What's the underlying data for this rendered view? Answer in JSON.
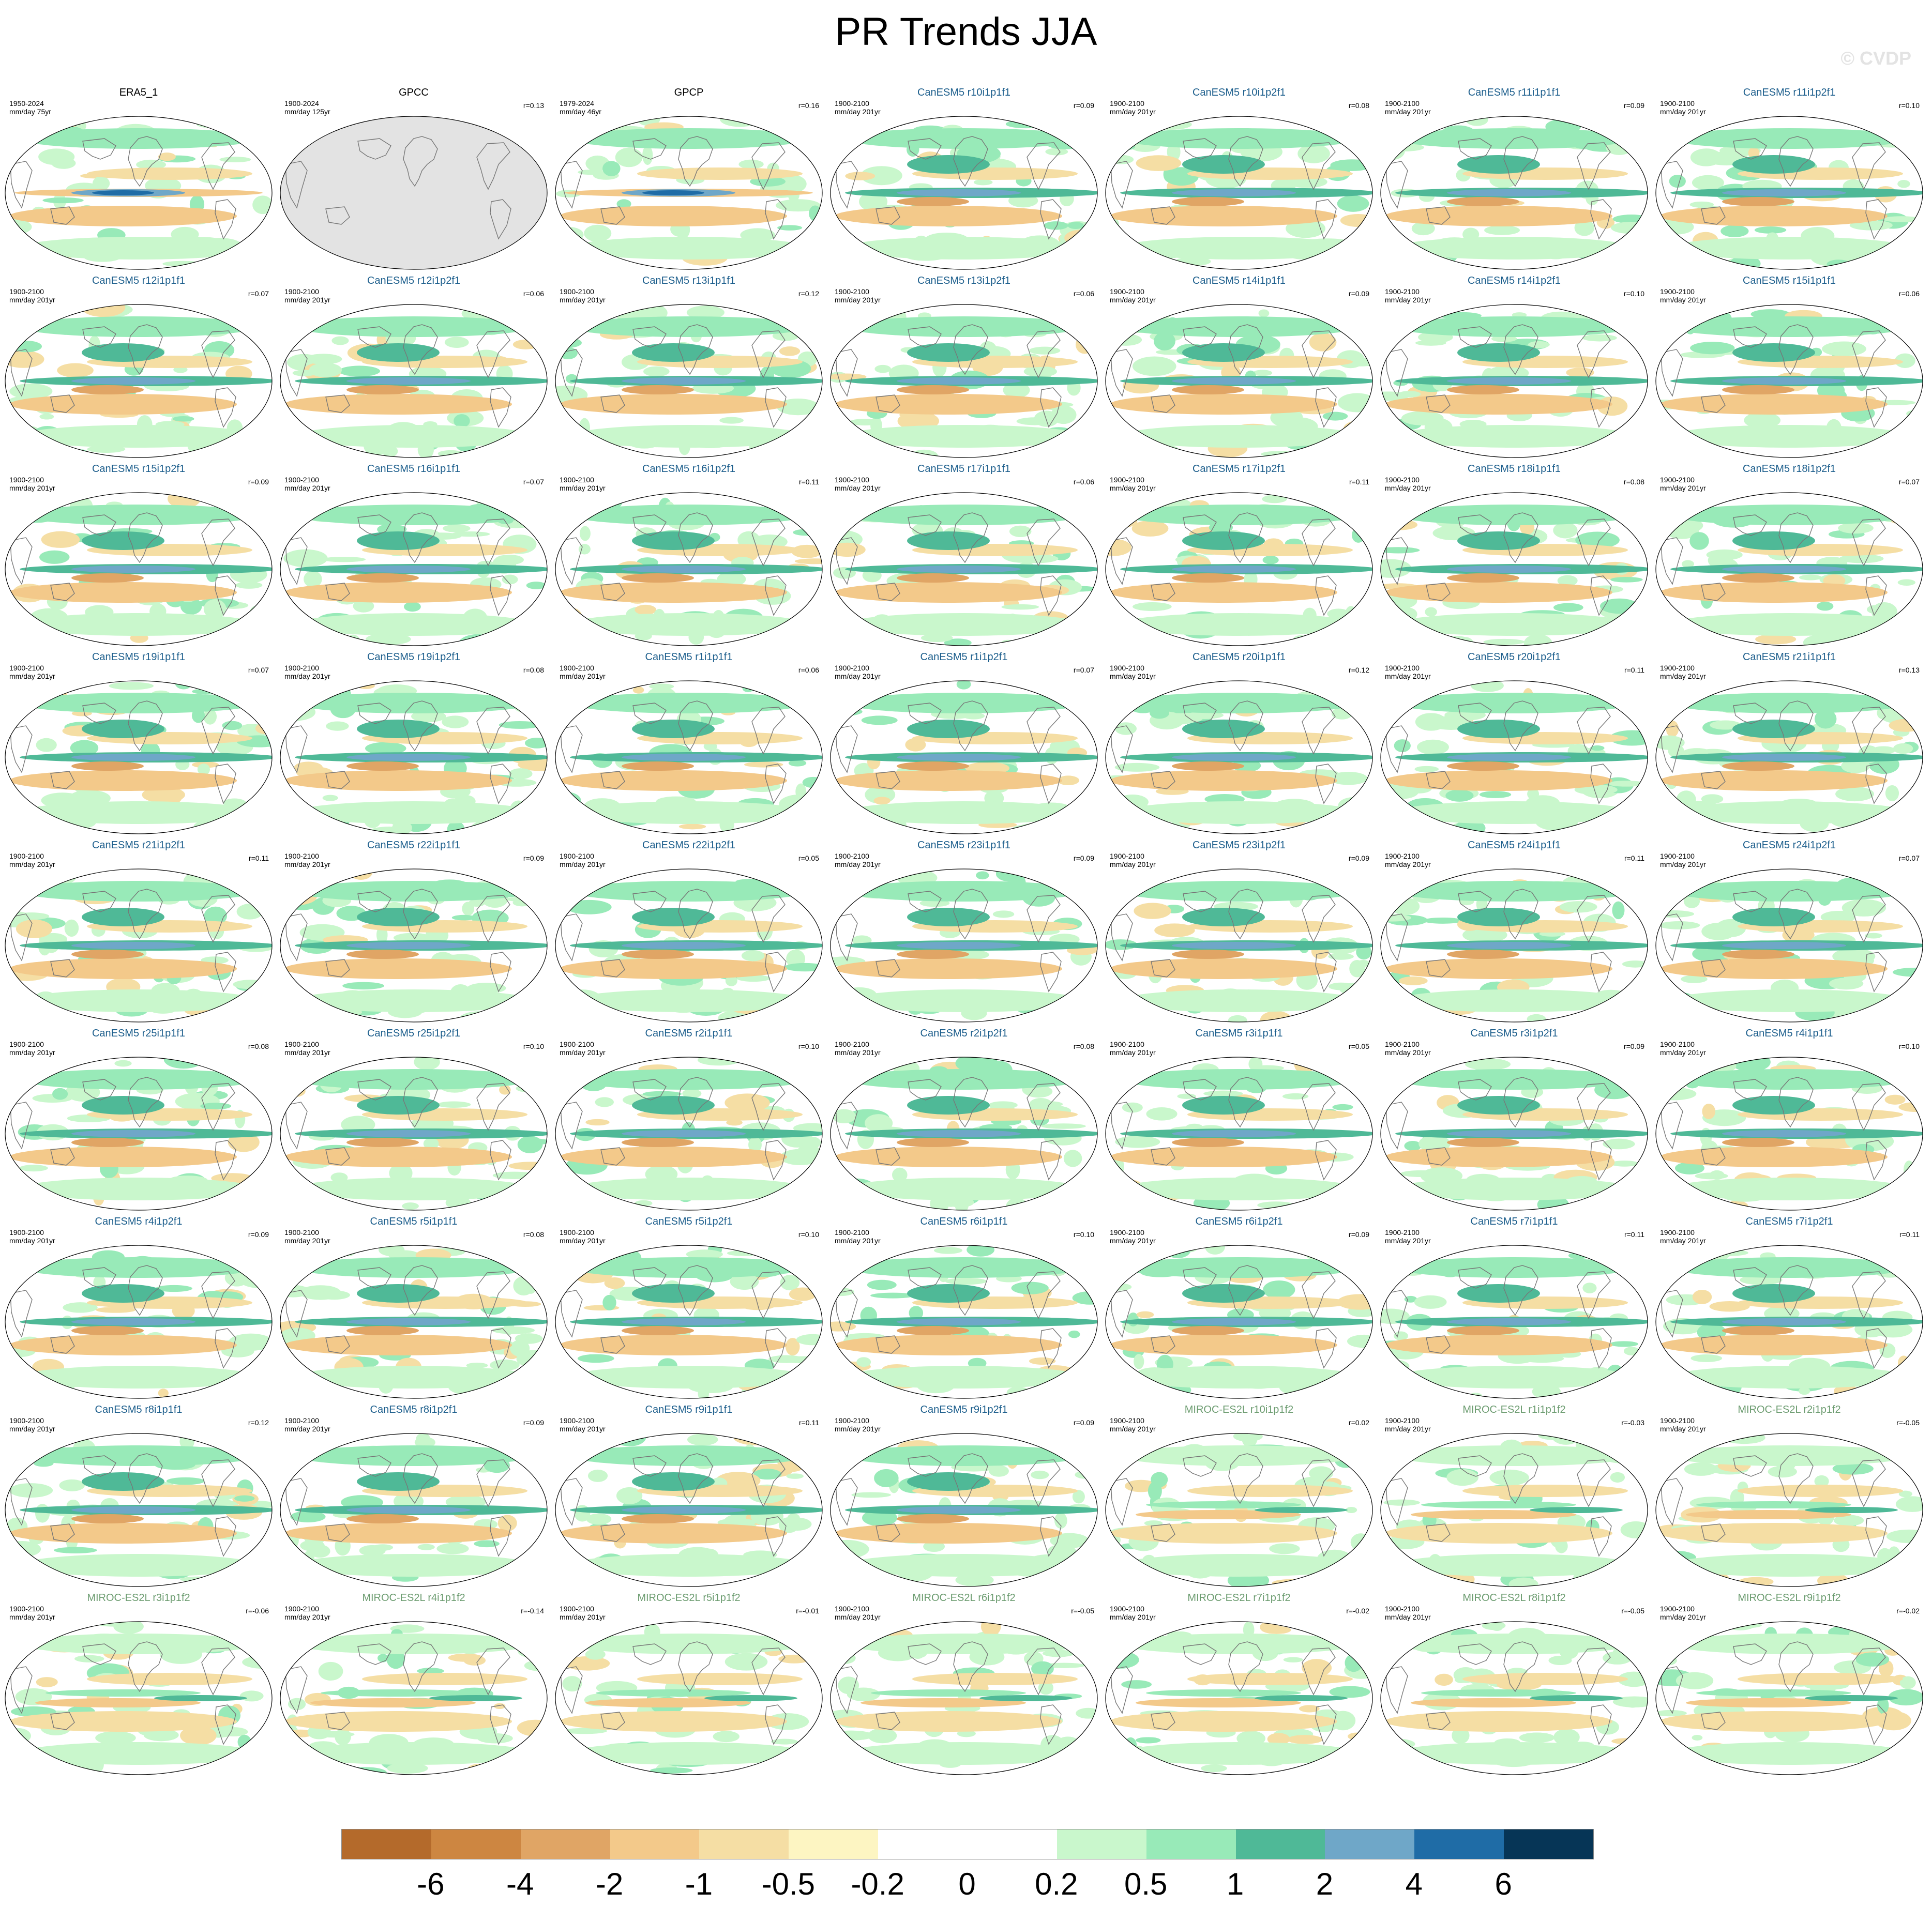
{
  "title": "PR Trends JJA",
  "watermark": "© CVDP",
  "colors": {
    "ocean_bg": "#ffffff",
    "land_missing": "#e3e3e3",
    "coast": "#777777",
    "obs_title": "#000000",
    "canesm_title": "#1c5e8c",
    "miroc_title": "#6c9c70"
  },
  "panels": [
    {
      "name": "ERA5_1",
      "period": "1950-2024",
      "units": "mm/day 75yr",
      "corr": "",
      "group": "obs"
    },
    {
      "name": "GPCC",
      "period": "1900-2024",
      "units": "mm/day 125yr",
      "corr": "r=0.13",
      "group": "obs"
    },
    {
      "name": "GPCP",
      "period": "1979-2024",
      "units": "mm/day 46yr",
      "corr": "r=0.16",
      "group": "obs"
    },
    {
      "name": "CanESM5 r10i1p1f1",
      "period": "1900-2100",
      "units": "mm/day 201yr",
      "corr": "r=0.09",
      "group": "canesm"
    },
    {
      "name": "CanESM5 r10i1p2f1",
      "period": "1900-2100",
      "units": "mm/day 201yr",
      "corr": "r=0.08",
      "group": "canesm"
    },
    {
      "name": "CanESM5 r11i1p1f1",
      "period": "1900-2100",
      "units": "mm/day 201yr",
      "corr": "r=0.09",
      "group": "canesm"
    },
    {
      "name": "CanESM5 r11i1p2f1",
      "period": "1900-2100",
      "units": "mm/day 201yr",
      "corr": "r=0.10",
      "group": "canesm"
    },
    {
      "name": "CanESM5 r12i1p1f1",
      "period": "1900-2100",
      "units": "mm/day 201yr",
      "corr": "r=0.07",
      "group": "canesm"
    },
    {
      "name": "CanESM5 r12i1p2f1",
      "period": "1900-2100",
      "units": "mm/day 201yr",
      "corr": "r=0.06",
      "group": "canesm"
    },
    {
      "name": "CanESM5 r13i1p1f1",
      "period": "1900-2100",
      "units": "mm/day 201yr",
      "corr": "r=0.12",
      "group": "canesm"
    },
    {
      "name": "CanESM5 r13i1p2f1",
      "period": "1900-2100",
      "units": "mm/day 201yr",
      "corr": "r=0.06",
      "group": "canesm"
    },
    {
      "name": "CanESM5 r14i1p1f1",
      "period": "1900-2100",
      "units": "mm/day 201yr",
      "corr": "r=0.09",
      "group": "canesm"
    },
    {
      "name": "CanESM5 r14i1p2f1",
      "period": "1900-2100",
      "units": "mm/day 201yr",
      "corr": "r=0.10",
      "group": "canesm"
    },
    {
      "name": "CanESM5 r15i1p1f1",
      "period": "1900-2100",
      "units": "mm/day 201yr",
      "corr": "r=0.06",
      "group": "canesm"
    },
    {
      "name": "CanESM5 r15i1p2f1",
      "period": "1900-2100",
      "units": "mm/day 201yr",
      "corr": "r=0.09",
      "group": "canesm"
    },
    {
      "name": "CanESM5 r16i1p1f1",
      "period": "1900-2100",
      "units": "mm/day 201yr",
      "corr": "r=0.07",
      "group": "canesm"
    },
    {
      "name": "CanESM5 r16i1p2f1",
      "period": "1900-2100",
      "units": "mm/day 201yr",
      "corr": "r=0.11",
      "group": "canesm"
    },
    {
      "name": "CanESM5 r17i1p1f1",
      "period": "1900-2100",
      "units": "mm/day 201yr",
      "corr": "r=0.06",
      "group": "canesm"
    },
    {
      "name": "CanESM5 r17i1p2f1",
      "period": "1900-2100",
      "units": "mm/day 201yr",
      "corr": "r=0.11",
      "group": "canesm"
    },
    {
      "name": "CanESM5 r18i1p1f1",
      "period": "1900-2100",
      "units": "mm/day 201yr",
      "corr": "r=0.08",
      "group": "canesm"
    },
    {
      "name": "CanESM5 r18i1p2f1",
      "period": "1900-2100",
      "units": "mm/day 201yr",
      "corr": "r=0.07",
      "group": "canesm"
    },
    {
      "name": "CanESM5 r19i1p1f1",
      "period": "1900-2100",
      "units": "mm/day 201yr",
      "corr": "r=0.07",
      "group": "canesm"
    },
    {
      "name": "CanESM5 r19i1p2f1",
      "period": "1900-2100",
      "units": "mm/day 201yr",
      "corr": "r=0.08",
      "group": "canesm"
    },
    {
      "name": "CanESM5 r1i1p1f1",
      "period": "1900-2100",
      "units": "mm/day 201yr",
      "corr": "r=0.06",
      "group": "canesm"
    },
    {
      "name": "CanESM5 r1i1p2f1",
      "period": "1900-2100",
      "units": "mm/day 201yr",
      "corr": "r=0.07",
      "group": "canesm"
    },
    {
      "name": "CanESM5 r20i1p1f1",
      "period": "1900-2100",
      "units": "mm/day 201yr",
      "corr": "r=0.12",
      "group": "canesm"
    },
    {
      "name": "CanESM5 r20i1p2f1",
      "period": "1900-2100",
      "units": "mm/day 201yr",
      "corr": "r=0.11",
      "group": "canesm"
    },
    {
      "name": "CanESM5 r21i1p1f1",
      "period": "1900-2100",
      "units": "mm/day 201yr",
      "corr": "r=0.13",
      "group": "canesm"
    },
    {
      "name": "CanESM5 r21i1p2f1",
      "period": "1900-2100",
      "units": "mm/day 201yr",
      "corr": "r=0.11",
      "group": "canesm"
    },
    {
      "name": "CanESM5 r22i1p1f1",
      "period": "1900-2100",
      "units": "mm/day 201yr",
      "corr": "r=0.09",
      "group": "canesm"
    },
    {
      "name": "CanESM5 r22i1p2f1",
      "period": "1900-2100",
      "units": "mm/day 201yr",
      "corr": "r=0.05",
      "group": "canesm"
    },
    {
      "name": "CanESM5 r23i1p1f1",
      "period": "1900-2100",
      "units": "mm/day 201yr",
      "corr": "r=0.09",
      "group": "canesm"
    },
    {
      "name": "CanESM5 r23i1p2f1",
      "period": "1900-2100",
      "units": "mm/day 201yr",
      "corr": "r=0.09",
      "group": "canesm"
    },
    {
      "name": "CanESM5 r24i1p1f1",
      "period": "1900-2100",
      "units": "mm/day 201yr",
      "corr": "r=0.11",
      "group": "canesm"
    },
    {
      "name": "CanESM5 r24i1p2f1",
      "period": "1900-2100",
      "units": "mm/day 201yr",
      "corr": "r=0.07",
      "group": "canesm"
    },
    {
      "name": "CanESM5 r25i1p1f1",
      "period": "1900-2100",
      "units": "mm/day 201yr",
      "corr": "r=0.08",
      "group": "canesm"
    },
    {
      "name": "CanESM5 r25i1p2f1",
      "period": "1900-2100",
      "units": "mm/day 201yr",
      "corr": "r=0.10",
      "group": "canesm"
    },
    {
      "name": "CanESM5 r2i1p1f1",
      "period": "1900-2100",
      "units": "mm/day 201yr",
      "corr": "r=0.10",
      "group": "canesm"
    },
    {
      "name": "CanESM5 r2i1p2f1",
      "period": "1900-2100",
      "units": "mm/day 201yr",
      "corr": "r=0.08",
      "group": "canesm"
    },
    {
      "name": "CanESM5 r3i1p1f1",
      "period": "1900-2100",
      "units": "mm/day 201yr",
      "corr": "r=0.05",
      "group": "canesm"
    },
    {
      "name": "CanESM5 r3i1p2f1",
      "period": "1900-2100",
      "units": "mm/day 201yr",
      "corr": "r=0.09",
      "group": "canesm"
    },
    {
      "name": "CanESM5 r4i1p1f1",
      "period": "1900-2100",
      "units": "mm/day 201yr",
      "corr": "r=0.10",
      "group": "canesm"
    },
    {
      "name": "CanESM5 r4i1p2f1",
      "period": "1900-2100",
      "units": "mm/day 201yr",
      "corr": "r=0.09",
      "group": "canesm"
    },
    {
      "name": "CanESM5 r5i1p1f1",
      "period": "1900-2100",
      "units": "mm/day 201yr",
      "corr": "r=0.08",
      "group": "canesm"
    },
    {
      "name": "CanESM5 r5i1p2f1",
      "period": "1900-2100",
      "units": "mm/day 201yr",
      "corr": "r=0.10",
      "group": "canesm"
    },
    {
      "name": "CanESM5 r6i1p1f1",
      "period": "1900-2100",
      "units": "mm/day 201yr",
      "corr": "r=0.10",
      "group": "canesm"
    },
    {
      "name": "CanESM5 r6i1p2f1",
      "period": "1900-2100",
      "units": "mm/day 201yr",
      "corr": "r=0.09",
      "group": "canesm"
    },
    {
      "name": "CanESM5 r7i1p1f1",
      "period": "1900-2100",
      "units": "mm/day 201yr",
      "corr": "r=0.11",
      "group": "canesm"
    },
    {
      "name": "CanESM5 r7i1p2f1",
      "period": "1900-2100",
      "units": "mm/day 201yr",
      "corr": "r=0.11",
      "group": "canesm"
    },
    {
      "name": "CanESM5 r8i1p1f1",
      "period": "1900-2100",
      "units": "mm/day 201yr",
      "corr": "r=0.12",
      "group": "canesm"
    },
    {
      "name": "CanESM5 r8i1p2f1",
      "period": "1900-2100",
      "units": "mm/day 201yr",
      "corr": "r=0.09",
      "group": "canesm"
    },
    {
      "name": "CanESM5 r9i1p1f1",
      "period": "1900-2100",
      "units": "mm/day 201yr",
      "corr": "r=0.11",
      "group": "canesm"
    },
    {
      "name": "CanESM5 r9i1p2f1",
      "period": "1900-2100",
      "units": "mm/day 201yr",
      "corr": "r=0.09",
      "group": "canesm"
    },
    {
      "name": "MIROC-ES2L r10i1p1f2",
      "period": "1900-2100",
      "units": "mm/day 201yr",
      "corr": "r=0.02",
      "group": "miroc"
    },
    {
      "name": "MIROC-ES2L r1i1p1f2",
      "period": "1900-2100",
      "units": "mm/day 201yr",
      "corr": "r=-0.03",
      "group": "miroc"
    },
    {
      "name": "MIROC-ES2L r2i1p1f2",
      "period": "1900-2100",
      "units": "mm/day 201yr",
      "corr": "r=-0.05",
      "group": "miroc"
    },
    {
      "name": "MIROC-ES2L r3i1p1f2",
      "period": "1900-2100",
      "units": "mm/day 201yr",
      "corr": "r=-0.06",
      "group": "miroc"
    },
    {
      "name": "MIROC-ES2L r4i1p1f2",
      "period": "1900-2100",
      "units": "mm/day 201yr",
      "corr": "r=-0.14",
      "group": "miroc"
    },
    {
      "name": "MIROC-ES2L r5i1p1f2",
      "period": "1900-2100",
      "units": "mm/day 201yr",
      "corr": "r=-0.01",
      "group": "miroc"
    },
    {
      "name": "MIROC-ES2L r6i1p1f2",
      "period": "1900-2100",
      "units": "mm/day 201yr",
      "corr": "r=-0.05",
      "group": "miroc"
    },
    {
      "name": "MIROC-ES2L r7i1p1f2",
      "period": "1900-2100",
      "units": "mm/day 201yr",
      "corr": "r=-0.02",
      "group": "miroc"
    },
    {
      "name": "MIROC-ES2L r8i1p1f2",
      "period": "1900-2100",
      "units": "mm/day 201yr",
      "corr": "r=-0.05",
      "group": "miroc"
    },
    {
      "name": "MIROC-ES2L r9i1p1f2",
      "period": "1900-2100",
      "units": "mm/day 201yr",
      "corr": "r=-0.02",
      "group": "miroc"
    }
  ],
  "colorbar": {
    "colors": [
      "#b46a2b",
      "#cd8641",
      "#e0a565",
      "#f3c98a",
      "#f5dea4",
      "#fdf5c2",
      "#ffffff",
      "#ffffff",
      "#c9f7cc",
      "#98eab8",
      "#4fb997",
      "#6fa7c8",
      "#1f6ca6",
      "#063556"
    ],
    "labels": [
      "-6",
      "-4",
      "-2",
      "-1",
      "-0.5",
      "-0.2",
      "0",
      "0.2",
      "0.5",
      "1",
      "2",
      "4",
      "6"
    ]
  }
}
